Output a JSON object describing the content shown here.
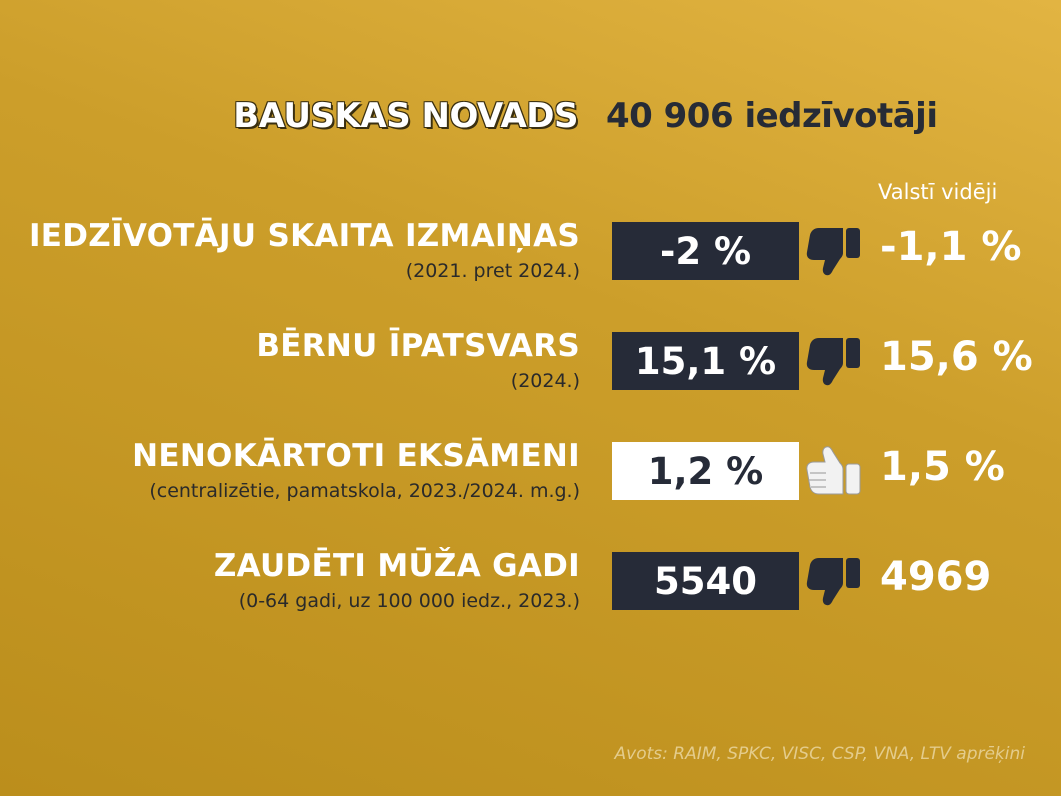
{
  "header": {
    "region": "BAUSKAS NOVADS",
    "population": "40 906 iedzīvotāji"
  },
  "average_column": {
    "label": "Valstī vidēji"
  },
  "rows": [
    {
      "label": "IEDZĪVOTĀJU SKAITA IZMAIŅAS",
      "note": "(2021. pret 2024.)",
      "value": "-2 %",
      "average": "-1,1 %",
      "thumb": "thumbs-down-icon",
      "box_style": "dark"
    },
    {
      "label": "BĒRNU ĪPATSVARS",
      "note": "(2024.)",
      "value": "15,1 %",
      "average": "15,6 %",
      "thumb": "thumbs-down-icon",
      "box_style": "dark"
    },
    {
      "label": "NENOKĀRTOTI EKSĀMENI",
      "note": "(centralizētie, pamatskola, 2023./2024. m.g.)",
      "value": "1,2 %",
      "average": "1,5 %",
      "thumb": "thumbs-up-icon",
      "box_style": "light"
    },
    {
      "label": "ZAUDĒTI MŪŽA GADI",
      "note": "(0-64 gadi, uz 100 000 iedz., 2023.)",
      "value": "5540",
      "average": "4969",
      "thumb": "thumbs-down-icon",
      "box_style": "dark"
    }
  ],
  "source": "Avots: RAIM, SPKC, VISC, CSP, VNA, LTV aprēķini",
  "colors": {
    "background": "#c99b28",
    "dark_box": "#262b38",
    "light_box": "#ffffff",
    "thumb_down": "#262b38",
    "thumb_up": "#f2f2f2"
  }
}
